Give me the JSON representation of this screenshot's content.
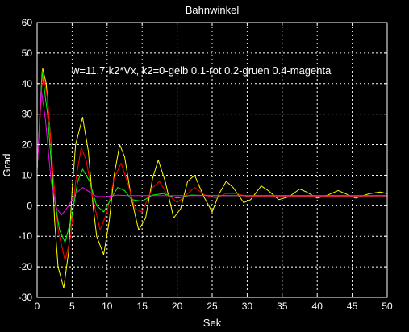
{
  "chart_data": {
    "type": "line",
    "title": "Bahnwinkel",
    "xlabel": "Sek",
    "ylabel": "Grad",
    "annotation": "w=11.7-k2*Vx, k2=0-gelb 0.1-rot 0.2-gruen 0.4-magenta",
    "xlim": [
      0,
      50
    ],
    "ylim": [
      -30,
      60
    ],
    "xticks": [
      0,
      5,
      10,
      15,
      20,
      25,
      30,
      35,
      40,
      45,
      50
    ],
    "yticks": [
      -30,
      -20,
      -10,
      0,
      10,
      20,
      30,
      40,
      50,
      60
    ],
    "grid": true,
    "background": "#000000",
    "axes_color": "#ffffff",
    "series": [
      {
        "color": "#ffff00",
        "points": [
          [
            0,
            12
          ],
          [
            0.8,
            45
          ],
          [
            1.3,
            40
          ],
          [
            2,
            20
          ],
          [
            2.5,
            -5
          ],
          [
            3,
            -20
          ],
          [
            3.8,
            -27
          ],
          [
            4.5,
            -15
          ],
          [
            5,
            5
          ],
          [
            5.5,
            20
          ],
          [
            6.5,
            29
          ],
          [
            7.3,
            18
          ],
          [
            8,
            0
          ],
          [
            8.5,
            -10
          ],
          [
            9.5,
            -16
          ],
          [
            10.3,
            -5
          ],
          [
            11,
            10
          ],
          [
            11.8,
            20
          ],
          [
            12.5,
            16
          ],
          [
            13.5,
            2
          ],
          [
            14.5,
            -8
          ],
          [
            15.5,
            -4
          ],
          [
            16.5,
            9
          ],
          [
            17.3,
            15
          ],
          [
            18.3,
            8
          ],
          [
            19.5,
            -4
          ],
          [
            20.5,
            -1
          ],
          [
            21.5,
            8
          ],
          [
            22.5,
            10
          ],
          [
            23.8,
            3
          ],
          [
            25,
            -2
          ],
          [
            26,
            4
          ],
          [
            27,
            8
          ],
          [
            28,
            6
          ],
          [
            29.5,
            1
          ],
          [
            30.5,
            2
          ],
          [
            32,
            6.5
          ],
          [
            33,
            5
          ],
          [
            34.5,
            2
          ],
          [
            36,
            3
          ],
          [
            37.5,
            5.5
          ],
          [
            38.5,
            4.5
          ],
          [
            40,
            2.5
          ],
          [
            41.5,
            3.5
          ],
          [
            43,
            5
          ],
          [
            44,
            4
          ],
          [
            45.5,
            2.5
          ],
          [
            47.5,
            4
          ],
          [
            49,
            4.5
          ],
          [
            50,
            4
          ]
        ]
      },
      {
        "color": "#ff0000",
        "points": [
          [
            0,
            12
          ],
          [
            0.8,
            44
          ],
          [
            1.5,
            35
          ],
          [
            2.3,
            10
          ],
          [
            3,
            -8
          ],
          [
            4,
            -18
          ],
          [
            4.8,
            -10
          ],
          [
            5.5,
            8
          ],
          [
            6.3,
            19
          ],
          [
            7,
            15
          ],
          [
            8,
            2
          ],
          [
            9,
            -8
          ],
          [
            10,
            -2
          ],
          [
            11,
            9
          ],
          [
            12,
            14
          ],
          [
            13,
            7
          ],
          [
            14,
            -1
          ],
          [
            15,
            -2
          ],
          [
            16.5,
            6
          ],
          [
            17.5,
            8
          ],
          [
            18.5,
            4
          ],
          [
            20,
            1
          ],
          [
            21,
            3
          ],
          [
            22.5,
            6
          ],
          [
            24,
            3.5
          ],
          [
            25.5,
            2.5
          ],
          [
            27,
            4
          ],
          [
            28.5,
            4
          ],
          [
            30,
            3
          ],
          [
            50,
            3.2
          ]
        ]
      },
      {
        "color": "#00ff00",
        "points": [
          [
            0,
            12
          ],
          [
            0.7,
            44
          ],
          [
            1.5,
            30
          ],
          [
            2.3,
            5
          ],
          [
            3.2,
            -8
          ],
          [
            4,
            -12
          ],
          [
            5,
            -3
          ],
          [
            5.8,
            8
          ],
          [
            6.5,
            12
          ],
          [
            7.5,
            8
          ],
          [
            8.5,
            0
          ],
          [
            9.5,
            -2
          ],
          [
            10.5,
            2
          ],
          [
            11.5,
            6
          ],
          [
            12.5,
            5
          ],
          [
            13.5,
            2
          ],
          [
            15,
            1.5
          ],
          [
            16.5,
            3.5
          ],
          [
            18,
            4
          ],
          [
            20,
            2.5
          ],
          [
            22,
            3.5
          ],
          [
            25,
            3.3
          ],
          [
            50,
            3.3
          ]
        ]
      },
      {
        "color": "#ff00ff",
        "points": [
          [
            0,
            12
          ],
          [
            0.6,
            38
          ],
          [
            1.2,
            28
          ],
          [
            2,
            8
          ],
          [
            2.8,
            -1
          ],
          [
            3.5,
            -3
          ],
          [
            4.5,
            0
          ],
          [
            5.5,
            4
          ],
          [
            6.5,
            6
          ],
          [
            7.5,
            4.5
          ],
          [
            8.5,
            3
          ],
          [
            10,
            3
          ],
          [
            11.5,
            3.5
          ],
          [
            13,
            3.3
          ],
          [
            50,
            3.3
          ]
        ]
      }
    ]
  }
}
